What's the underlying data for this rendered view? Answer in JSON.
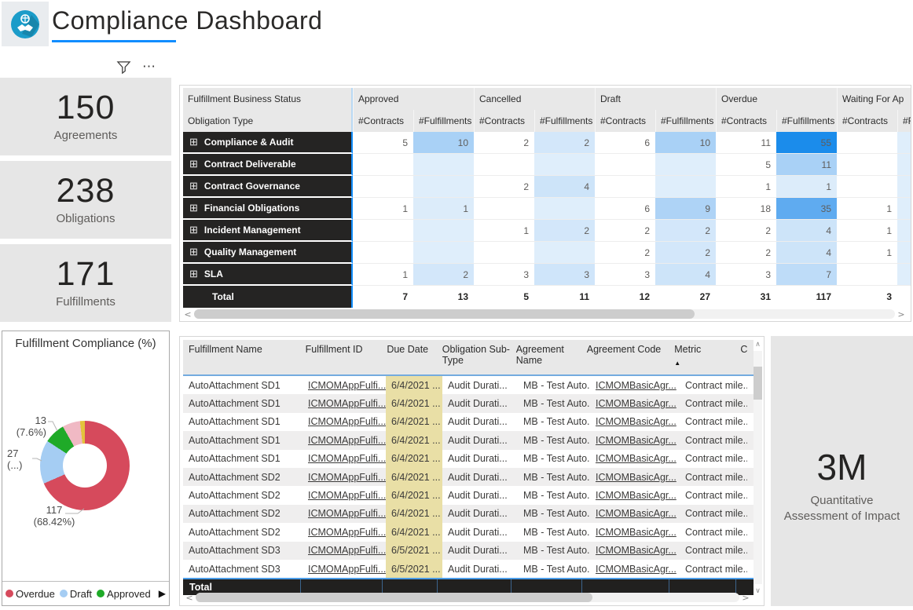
{
  "header": {
    "title": "Compliance Dashboard"
  },
  "toolbar": {
    "more_glyph": "⋯"
  },
  "icons": {
    "scroll_left": "<",
    "scroll_right": ">",
    "scroll_up": "∧",
    "scroll_down": "∨",
    "expand": "⊞",
    "sort_asc": "▲",
    "legend_next": "▶"
  },
  "kpis": [
    {
      "value": "150",
      "label": "Agreements"
    },
    {
      "value": "238",
      "label": "Obligations"
    },
    {
      "value": "171",
      "label": "Fulfillments"
    }
  ],
  "chart_data": {
    "type": "pie",
    "title": "Fulfillment Compliance (%)",
    "slices": [
      {
        "label": "Overdue",
        "value": 117,
        "pct": "68.42%",
        "color": "#d64a5c"
      },
      {
        "label": "Draft",
        "value": 27,
        "pct": "...",
        "color": "#a5cdf3"
      },
      {
        "label": "Approved",
        "value": 13,
        "pct": "7.6%",
        "color": "#1faa28"
      },
      {
        "label": "",
        "value": 11,
        "pct": "",
        "color": "#f0b9c4"
      },
      {
        "label": "",
        "value": 3,
        "pct": "",
        "color": "#e3c33c"
      }
    ],
    "callouts": [
      {
        "line1": "13",
        "line2": "(7.6%)"
      },
      {
        "line1": "27",
        "line2": "(...)"
      },
      {
        "line1": "117",
        "line2": "(68.42%)"
      }
    ],
    "legend": [
      {
        "label": "Overdue",
        "color": "#d64a5c"
      },
      {
        "label": "Draft",
        "color": "#a5cdf3"
      },
      {
        "label": "Approved",
        "color": "#1faa28"
      }
    ],
    "legend_position": "bottom"
  },
  "matrix": {
    "corner_title": "Fulfillment Business Status",
    "corner_subtitle": "Obligation Type",
    "col_groups": [
      {
        "label": "Approved"
      },
      {
        "label": "Cancelled"
      },
      {
        "label": "Draft"
      },
      {
        "label": "Overdue"
      },
      {
        "label": "Waiting For Ap"
      }
    ],
    "sub_columns": [
      "#Contracts",
      "#Fulfillments"
    ],
    "rows": [
      {
        "label": "Compliance & Audit",
        "values": [
          "5",
          "10",
          "2",
          "2",
          "6",
          "10",
          "11",
          "55",
          "",
          ""
        ],
        "fills": [
          null,
          "#a9d1f6",
          null,
          "#d3e7fa",
          null,
          "#a9d1f6",
          null,
          "#1b8ceb",
          null,
          "#dfeefb"
        ]
      },
      {
        "label": "Contract Deliverable",
        "values": [
          "",
          "",
          "",
          "",
          "",
          "",
          "5",
          "11",
          "",
          ""
        ],
        "fills": [
          null,
          "#dfeefb",
          null,
          "#dfeefb",
          null,
          "#dfeefb",
          null,
          "#a9d1f6",
          null,
          "#dfeefb"
        ]
      },
      {
        "label": "Contract Governance",
        "values": [
          "",
          "",
          "2",
          "4",
          "",
          "",
          "1",
          "1",
          "",
          ""
        ],
        "fills": [
          null,
          "#dfeefb",
          null,
          "#cde4f9",
          null,
          "#dfeefb",
          null,
          "#dcecfa",
          null,
          "#dfeefb"
        ]
      },
      {
        "label": "Financial Obligations",
        "values": [
          "1",
          "1",
          "",
          "",
          "6",
          "9",
          "18",
          "35",
          "1",
          ""
        ],
        "fills": [
          null,
          "#dcecfa",
          null,
          "#dfeefb",
          null,
          "#aed3f6",
          null,
          "#5fabf0",
          null,
          "#dfeefb"
        ]
      },
      {
        "label": "Incident Management",
        "values": [
          "",
          "",
          "1",
          "2",
          "2",
          "2",
          "2",
          "4",
          "1",
          ""
        ],
        "fills": [
          null,
          "#dfeefb",
          null,
          "#d3e7fa",
          null,
          "#d3e7fa",
          null,
          "#cde4f9",
          null,
          "#dfeefb"
        ]
      },
      {
        "label": "Quality Management",
        "values": [
          "",
          "",
          "",
          "",
          "2",
          "2",
          "2",
          "4",
          "1",
          ""
        ],
        "fills": [
          null,
          "#dfeefb",
          null,
          "#dfeefb",
          null,
          "#d3e7fa",
          null,
          "#cde4f9",
          null,
          "#dfeefb"
        ]
      },
      {
        "label": "SLA",
        "values": [
          "1",
          "2",
          "3",
          "3",
          "3",
          "4",
          "3",
          "7",
          "",
          ""
        ],
        "fills": [
          null,
          "#d3e7fa",
          null,
          "#cfe5fa",
          null,
          "#cde4f9",
          null,
          "#bedcf8",
          null,
          "#dfeefb"
        ]
      }
    ],
    "total_row": {
      "label": "Total",
      "values": [
        "7",
        "13",
        "5",
        "11",
        "12",
        "27",
        "31",
        "117",
        "3",
        ""
      ]
    }
  },
  "table": {
    "columns": [
      "Fulfillment Name",
      "Fulfillment ID",
      "Due Date",
      "Obligation Sub-Type",
      "Agreement Name",
      "Agreement Code",
      "Metric",
      "C"
    ],
    "sorted_column": "Metric",
    "rows": [
      {
        "name": "AutoAttachment SD1",
        "id": "ICMOMAppFulfi...",
        "due": "6/4/2021 ...",
        "subtype": "Audit Durati...",
        "agreement": "MB - Test Auto...",
        "code": "ICMOMBasicAgr...",
        "metric": "Contract mile..."
      },
      {
        "name": "AutoAttachment SD1",
        "id": "ICMOMAppFulfi...",
        "due": "6/4/2021 ...",
        "subtype": "Audit Durati...",
        "agreement": "MB - Test Auto...",
        "code": "ICMOMBasicAgr...",
        "metric": "Contract mile..."
      },
      {
        "name": "AutoAttachment SD1",
        "id": "ICMOMAppFulfi...",
        "due": "6/4/2021 ...",
        "subtype": "Audit Durati...",
        "agreement": "MB - Test Auto...",
        "code": "ICMOMBasicAgr...",
        "metric": "Contract mile..."
      },
      {
        "name": "AutoAttachment SD1",
        "id": "ICMOMAppFulfi...",
        "due": "6/4/2021 ...",
        "subtype": "Audit Durati...",
        "agreement": "MB - Test Auto...",
        "code": "ICMOMBasicAgr...",
        "metric": "Contract mile..."
      },
      {
        "name": "AutoAttachment SD1",
        "id": "ICMOMAppFulfi...",
        "due": "6/4/2021 ...",
        "subtype": "Audit Durati...",
        "agreement": "MB - Test Auto...",
        "code": "ICMOMBasicAgr...",
        "metric": "Contract mile..."
      },
      {
        "name": "AutoAttachment SD2",
        "id": "ICMOMAppFulfi...",
        "due": "6/4/2021 ...",
        "subtype": "Audit Durati...",
        "agreement": "MB - Test Auto...",
        "code": "ICMOMBasicAgr...",
        "metric": "Contract mile..."
      },
      {
        "name": "AutoAttachment SD2",
        "id": "ICMOMAppFulfi...",
        "due": "6/4/2021 ...",
        "subtype": "Audit Durati...",
        "agreement": "MB - Test Auto...",
        "code": "ICMOMBasicAgr...",
        "metric": "Contract mile..."
      },
      {
        "name": "AutoAttachment SD2",
        "id": "ICMOMAppFulfi...",
        "due": "6/4/2021 ...",
        "subtype": "Audit Durati...",
        "agreement": "MB - Test Auto...",
        "code": "ICMOMBasicAgr...",
        "metric": "Contract mile..."
      },
      {
        "name": "AutoAttachment SD2",
        "id": "ICMOMAppFulfi...",
        "due": "6/4/2021 ...",
        "subtype": "Audit Durati...",
        "agreement": "MB - Test Auto...",
        "code": "ICMOMBasicAgr...",
        "metric": "Contract mile..."
      },
      {
        "name": "AutoAttachment SD3",
        "id": "ICMOMAppFulfi...",
        "due": "6/5/2021 ...",
        "subtype": "Audit Durati...",
        "agreement": "MB - Test Auto...",
        "code": "ICMOMBasicAgr...",
        "metric": "Contract mile..."
      },
      {
        "name": "AutoAttachment SD3",
        "id": "ICMOMAppFulfi...",
        "due": "6/5/2021 ...",
        "subtype": "Audit Durati...",
        "agreement": "MB - Test Auto...",
        "code": "ICMOMBasicAgr...",
        "metric": "Contract mile..."
      }
    ],
    "total_label": "Total"
  },
  "impact_card": {
    "value": "3M",
    "label": "Quantitative Assessment of Impact"
  }
}
